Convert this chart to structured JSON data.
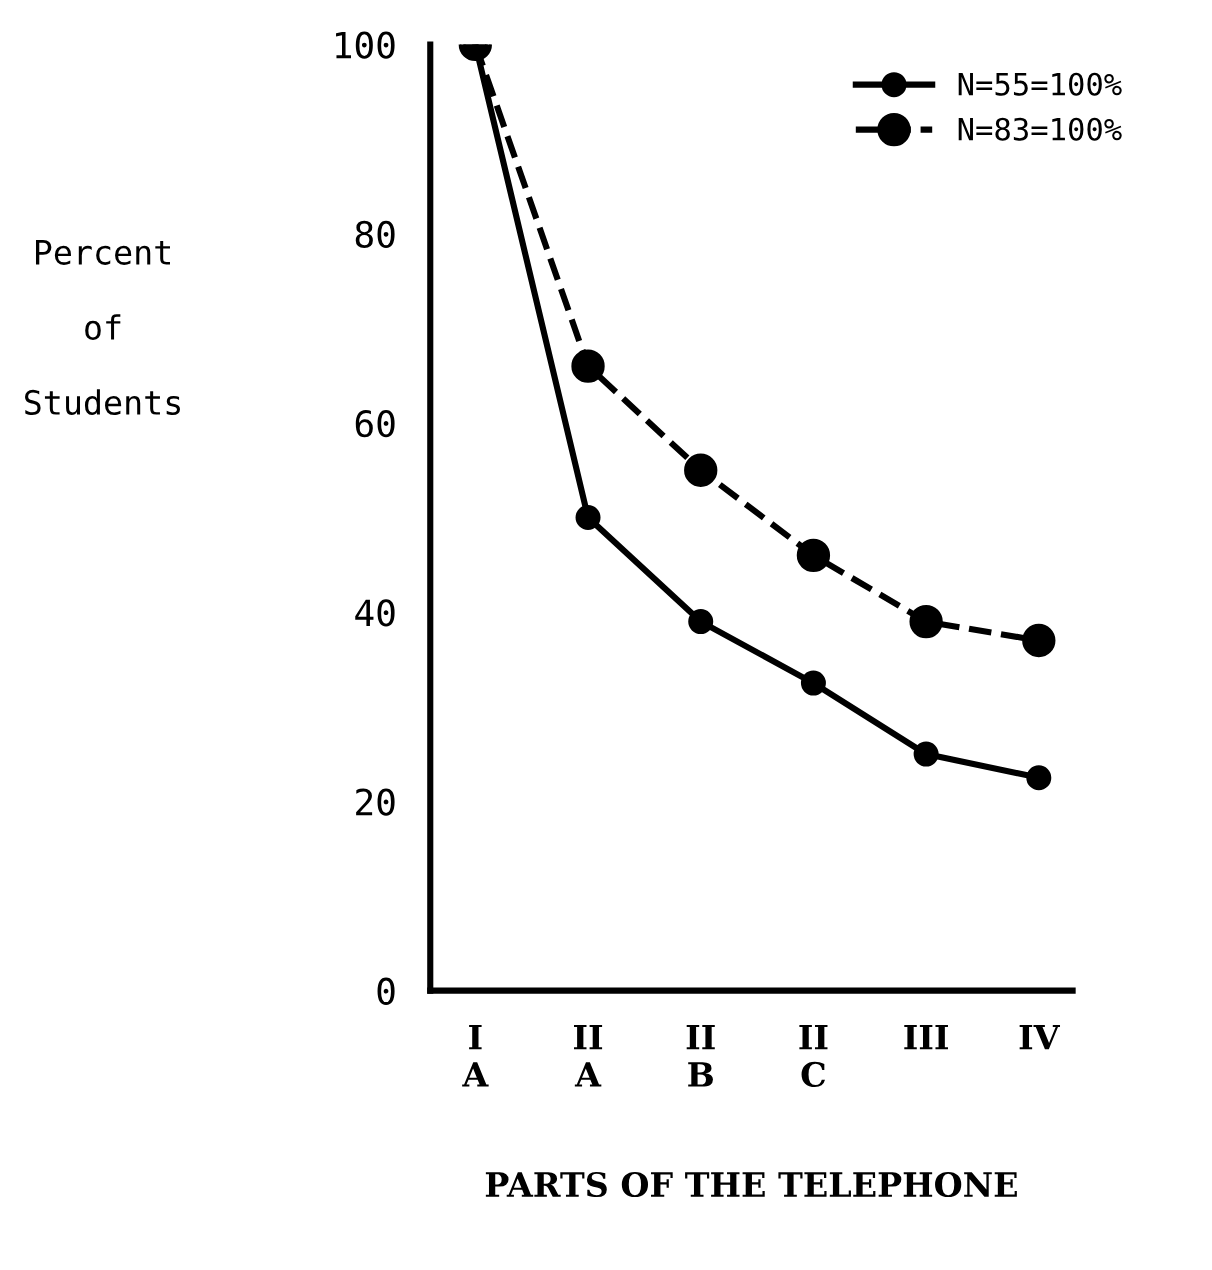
{
  "chart_data": {
    "type": "line",
    "xlabel": "PARTS OF THE TELEPHONE",
    "ylabel": "Percent\n\nof\n\nStudents",
    "categories": [
      "I\nA",
      "II\nA",
      "II\nB",
      "II\nC",
      "III",
      "IV"
    ],
    "series": [
      {
        "name": "N=55=100%",
        "color": "#000000",
        "line_style": "solid",
        "values": [
          100,
          50,
          39,
          32.5,
          25,
          22.5
        ]
      },
      {
        "name": "N=83=100%",
        "color": "#000000",
        "line_style": "dashed",
        "values": [
          100,
          66,
          55,
          46,
          39,
          37
        ]
      }
    ],
    "ylim": [
      0,
      100
    ],
    "yticks": [
      0,
      20,
      40,
      60,
      80,
      100
    ],
    "marker": "circle",
    "legend": "top right",
    "grid": false
  }
}
